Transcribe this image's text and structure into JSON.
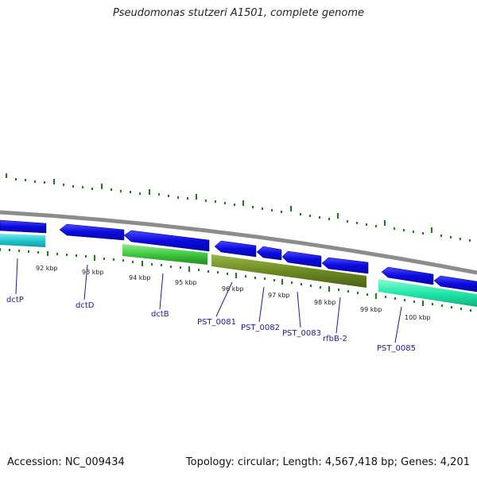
{
  "title": "Pseudomonas stutzeri A1501, complete genome",
  "footer": {
    "accession": "Accession: NC_009434",
    "summary": "Topology: circular; Length: 4,567,418 bp; Genes: 4,201"
  },
  "colors": {
    "forward_cds": "#0a0ae0",
    "reverse_cds_cyan": "#22c8d0",
    "reverse_cds_green": "#3ec83e",
    "reverse_cds_olive": "#6b8a22",
    "reverse_cds_teal": "#22e8a8",
    "backbone": "#8c8c8c",
    "tick": "#1e7a1e",
    "gene_label": "#1a1aa6"
  },
  "ruler_labels": [
    "92 kbp",
    "93 kbp",
    "94 kbp",
    "95 kbp",
    "96 kbp",
    "97 kbp",
    "98 kbp",
    "99 kbp",
    "100 kbp"
  ],
  "gene_labels": [
    "dctP",
    "dctD",
    "dctB",
    "PST_0081",
    "PST_0082",
    "PST_0083",
    "rfbB-2",
    "PST_0085"
  ]
}
